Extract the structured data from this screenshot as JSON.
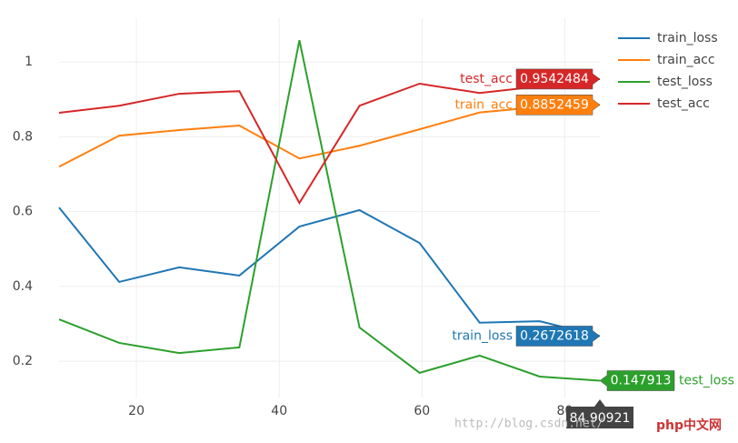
{
  "chart_data": {
    "type": "line",
    "x": [
      9.17,
      17.59,
      26.0,
      34.42,
      42.83,
      51.25,
      59.66,
      68.08,
      76.49,
      84.90921
    ],
    "series": [
      {
        "name": "train_loss",
        "color": "#1f77b4",
        "values": [
          0.611,
          0.412,
          0.451,
          0.429,
          0.56,
          0.604,
          0.516,
          0.303,
          0.307,
          0.2672618
        ]
      },
      {
        "name": "train_acc",
        "color": "#ff7f0e",
        "values": [
          0.72,
          0.803,
          0.818,
          0.83,
          0.742,
          0.776,
          0.82,
          0.865,
          0.88,
          0.8852459
        ]
      },
      {
        "name": "test_loss",
        "color": "#2ca02c",
        "values": [
          0.312,
          0.249,
          0.222,
          0.237,
          1.058,
          0.29,
          0.169,
          0.215,
          0.159,
          0.147913
        ]
      },
      {
        "name": "test_acc",
        "color": "#d62728",
        "values": [
          0.864,
          0.883,
          0.915,
          0.922,
          0.623,
          0.883,
          0.942,
          0.917,
          0.935,
          0.9542484
        ]
      }
    ],
    "xlim": [
      9.17,
      84.90921
    ],
    "xticks": [
      20,
      40,
      60,
      80
    ],
    "ylim": [
      0.103,
      1.117
    ],
    "yticks": [
      0.2,
      0.4,
      0.6,
      0.8,
      1
    ],
    "grid": true,
    "legend": "right",
    "hover_index": 9,
    "watermark": "http://blog.csdn.net/",
    "logo": "php中文网"
  }
}
